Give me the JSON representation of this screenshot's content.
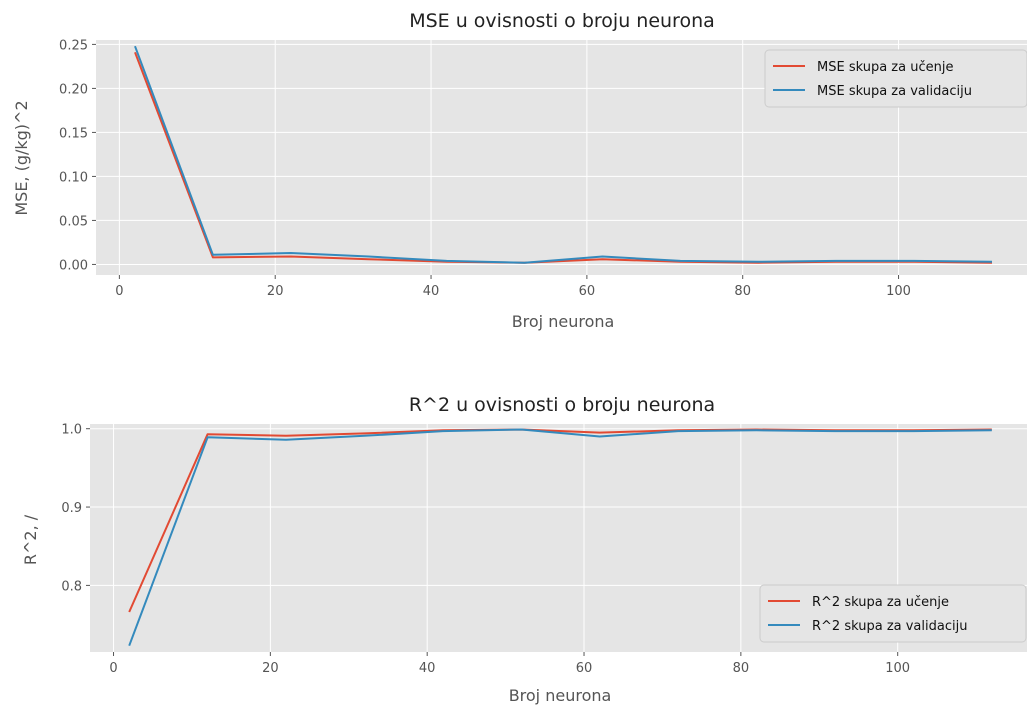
{
  "colors": {
    "train": "#E24A33",
    "val": "#348ABD",
    "plot_bg": "#E5E5E5",
    "grid": "#FFFFFF"
  },
  "chart_data": [
    {
      "type": "line",
      "title": "MSE u ovisnosti o broju neurona",
      "xlabel": "Broj neurona",
      "ylabel": "MSE, (g/kg)^2",
      "xlim": [
        -3,
        117
      ],
      "ylim": [
        -0.012,
        0.255
      ],
      "xticks": [
        0,
        20,
        40,
        60,
        80,
        100
      ],
      "yticks": [
        0.0,
        0.05,
        0.1,
        0.15,
        0.2,
        0.25
      ],
      "xtick_labels": [
        "0",
        "20",
        "40",
        "60",
        "80",
        "100"
      ],
      "ytick_labels": [
        "0.00",
        "0.05",
        "0.10",
        "0.15",
        "0.20",
        "0.25"
      ],
      "grid": true,
      "legend": "top-right",
      "x": [
        2,
        12,
        22,
        32,
        42,
        52,
        62,
        72,
        82,
        92,
        102,
        112
      ],
      "series": [
        {
          "name": "MSE skupa za učenje",
          "color": "#E24A33",
          "values": [
            0.241,
            0.008,
            0.009,
            0.006,
            0.003,
            0.002,
            0.006,
            0.003,
            0.002,
            0.003,
            0.003,
            0.002
          ]
        },
        {
          "name": "MSE skupa za validaciju",
          "color": "#348ABD",
          "values": [
            0.248,
            0.011,
            0.013,
            0.009,
            0.004,
            0.002,
            0.009,
            0.004,
            0.003,
            0.004,
            0.004,
            0.003
          ]
        }
      ]
    },
    {
      "type": "line",
      "title": "R^2 u ovisnosti o broju neurona",
      "xlabel": "Broj neurona",
      "ylabel": "R^2, /",
      "xlim": [
        -3,
        117
      ],
      "ylim": [
        0.715,
        1.006
      ],
      "xticks": [
        0,
        20,
        40,
        60,
        80,
        100
      ],
      "yticks": [
        0.8,
        0.9,
        1.0
      ],
      "xtick_labels": [
        "0",
        "20",
        "40",
        "60",
        "80",
        "100"
      ],
      "ytick_labels": [
        "0.8",
        "0.9",
        "1.0"
      ],
      "grid": true,
      "legend": "bottom-right",
      "x": [
        2,
        12,
        22,
        32,
        42,
        52,
        62,
        72,
        82,
        92,
        102,
        112
      ],
      "series": [
        {
          "name": "R^2 skupa za učenje",
          "color": "#E24A33",
          "values": [
            0.766,
            0.993,
            0.991,
            0.994,
            0.998,
            0.999,
            0.995,
            0.998,
            0.999,
            0.998,
            0.998,
            0.999
          ]
        },
        {
          "name": "R^2 skupa za validaciju",
          "color": "#348ABD",
          "values": [
            0.723,
            0.989,
            0.986,
            0.991,
            0.997,
            0.999,
            0.99,
            0.997,
            0.998,
            0.997,
            0.997,
            0.998
          ]
        }
      ]
    }
  ]
}
